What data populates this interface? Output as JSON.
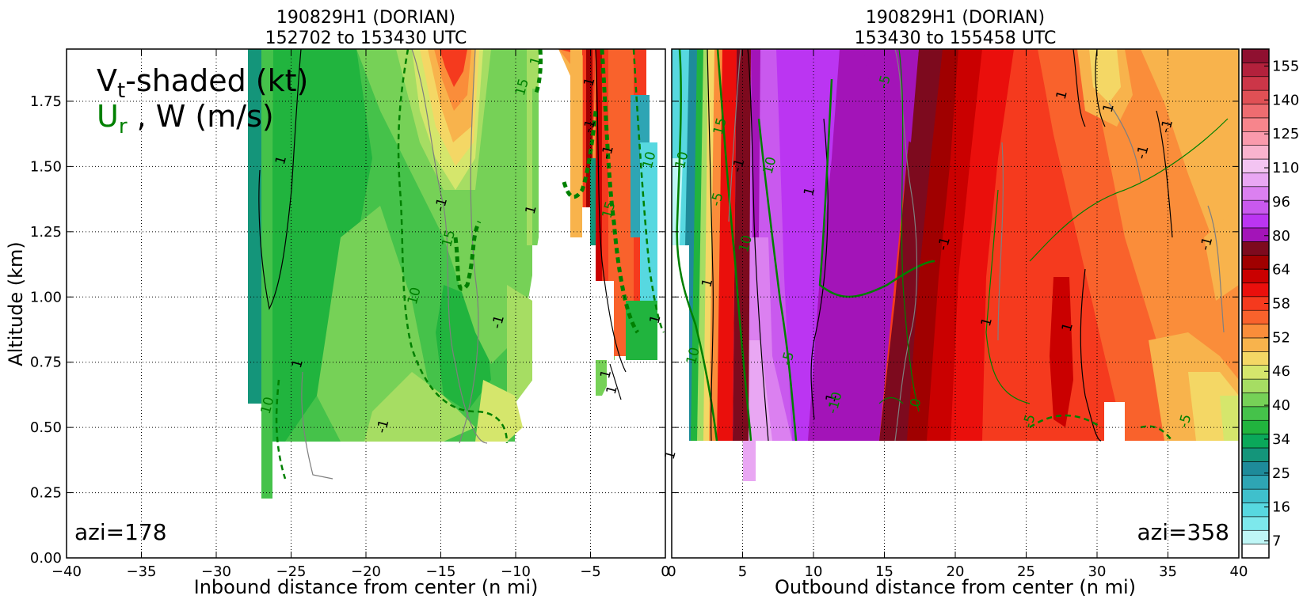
{
  "chart_data": [
    {
      "type": "heatmap",
      "title_line1": "190829H1 (DORIAN)",
      "title_line2": "152702 to 153430 UTC",
      "xlabel": "Inbound distance from center (n mi)",
      "ylabel": "Altitude (km)",
      "xlim": [
        -40,
        0
      ],
      "ylim": [
        0.0,
        1.95
      ],
      "x_ticks": [
        "−40",
        "−35",
        "−30",
        "−25",
        "−20",
        "−15",
        "−10",
        "−5",
        "0"
      ],
      "y_ticks": [
        "0.00",
        "0.25",
        "0.50",
        "0.75",
        "1.00",
        "1.25",
        "1.50",
        "1.75"
      ],
      "grid": true,
      "annotation_azimuth": "azi=178",
      "legend_line1_main": "V",
      "legend_line1_sub": "t",
      "legend_line1_rest": "-shaded (kt)",
      "legend_line2_main": "U",
      "legend_line2_sub": "r",
      "legend_line2_rest": " , W (m/s)",
      "contour_labels": [
        {
          "text": "1",
          "x": -24.3,
          "y": 0.74,
          "color": "#000000"
        },
        {
          "text": "1",
          "x": -25.4,
          "y": 1.52,
          "color": "#000000"
        },
        {
          "text": "-1",
          "x": -18.6,
          "y": 0.5,
          "color": "#000000"
        },
        {
          "text": "-1",
          "x": -14.7,
          "y": 1.35,
          "color": "#000000"
        },
        {
          "text": "-1",
          "x": -10.9,
          "y": 0.9,
          "color": "#000000"
        },
        {
          "text": "1",
          "x": -8.7,
          "y": 1.33,
          "color": "#000000"
        },
        {
          "text": "1",
          "x": -4.8,
          "y": 1.82,
          "color": "#000000"
        },
        {
          "text": "-1",
          "x": -4.8,
          "y": 1.65,
          "color": "#000000"
        },
        {
          "text": "-1",
          "x": -3.6,
          "y": 1.55,
          "color": "#000000"
        },
        {
          "text": "1",
          "x": -3.7,
          "y": 0.7,
          "color": "#000000"
        },
        {
          "text": "1",
          "x": -3.3,
          "y": 0.64,
          "color": "#000000"
        },
        {
          "text": "1",
          "x": -0.4,
          "y": 0.91,
          "color": "#000000"
        },
        {
          "text": "10",
          "x": -26.3,
          "y": 0.58,
          "color": "#008000"
        },
        {
          "text": "10",
          "x": -16.5,
          "y": 1.0,
          "color": "#008000"
        },
        {
          "text": "15",
          "x": -14.2,
          "y": 1.22,
          "color": "#008000"
        },
        {
          "text": "15",
          "x": -9.3,
          "y": 1.8,
          "color": "#008000"
        },
        {
          "text": "15",
          "x": -3.5,
          "y": 1.33,
          "color": "#008000"
        },
        {
          "text": "10",
          "x": -0.8,
          "y": 1.52,
          "color": "#008000"
        },
        {
          "text": "1",
          "x": -8.4,
          "y": 1.9,
          "color": "#008000"
        }
      ]
    },
    {
      "type": "heatmap",
      "title_line1": "190829H1 (DORIAN)",
      "title_line2": "153430 to 155458 UTC",
      "xlabel": "Outbound distance from center (n mi)",
      "xlim": [
        0,
        40
      ],
      "ylim": [
        0.0,
        1.95
      ],
      "x_ticks": [
        "0",
        "5",
        "10",
        "15",
        "20",
        "25",
        "30",
        "35",
        "40"
      ],
      "grid": true,
      "annotation_azimuth": "azi=358",
      "contour_labels": [
        {
          "text": "1",
          "x": 2.8,
          "y": 1.05,
          "color": "#000000"
        },
        {
          "text": "-1",
          "x": 5.0,
          "y": 1.5,
          "color": "#000000"
        },
        {
          "text": "1",
          "x": 10.0,
          "y": 1.4,
          "color": "#000000"
        },
        {
          "text": "-1",
          "x": 11.5,
          "y": 0.6,
          "color": "#000000"
        },
        {
          "text": "-1",
          "x": 19.5,
          "y": 1.2,
          "color": "#000000"
        },
        {
          "text": "1",
          "x": 22.5,
          "y": 0.9,
          "color": "#000000"
        },
        {
          "text": "1",
          "x": 28.2,
          "y": 0.88,
          "color": "#000000"
        },
        {
          "text": "1",
          "x": 27.8,
          "y": 1.77,
          "color": "#000000"
        },
        {
          "text": "1",
          "x": 31.1,
          "y": 1.72,
          "color": "#000000"
        },
        {
          "text": "-1",
          "x": 35.2,
          "y": 1.65,
          "color": "#000000"
        },
        {
          "text": "-1",
          "x": 33.5,
          "y": 1.55,
          "color": "#000000"
        },
        {
          "text": "-1",
          "x": 38.0,
          "y": 1.2,
          "color": "#000000"
        },
        {
          "text": "1",
          "x": 0.2,
          "y": 0.39,
          "color": "#000000"
        },
        {
          "text": "10",
          "x": 1.0,
          "y": 1.52,
          "color": "#008000"
        },
        {
          "text": "10",
          "x": 1.8,
          "y": 0.77,
          "color": "#008000"
        },
        {
          "text": "15",
          "x": 3.7,
          "y": 1.65,
          "color": "#008000"
        },
        {
          "text": "-5",
          "x": 3.5,
          "y": 1.37,
          "color": "#008000"
        },
        {
          "text": "10",
          "x": 5.5,
          "y": 1.2,
          "color": "#008000"
        },
        {
          "text": "10",
          "x": 7.2,
          "y": 1.5,
          "color": "#008000"
        },
        {
          "text": "-5",
          "x": 8.5,
          "y": 0.76,
          "color": "#008000"
        },
        {
          "text": "-10",
          "x": 11.8,
          "y": 0.59,
          "color": "#008000"
        },
        {
          "text": "0",
          "x": 17.5,
          "y": 0.59,
          "color": "#008000"
        },
        {
          "text": "-5",
          "x": 15.3,
          "y": 1.82,
          "color": "#008000"
        },
        {
          "text": "-5",
          "x": 25.5,
          "y": 0.52,
          "color": "#008000"
        },
        {
          "text": "-5",
          "x": 36.5,
          "y": 0.52,
          "color": "#008000"
        }
      ]
    }
  ],
  "colorbar": {
    "tick_labels": [
      "155",
      "140",
      "125",
      "110",
      "96",
      "80",
      "64",
      "58",
      "52",
      "46",
      "40",
      "34",
      "25",
      "16",
      "7"
    ],
    "colors": [
      "#ffffff",
      "#bff6f6",
      "#7de8ec",
      "#57d8e0",
      "#3fc0cc",
      "#2ea5b4",
      "#1e8b9a",
      "#14957a",
      "#0aa85a",
      "#21b43e",
      "#45c24a",
      "#76d157",
      "#a6dd63",
      "#d5e66c",
      "#f4d765",
      "#f8b34c",
      "#fa8d3a",
      "#f9622c",
      "#f53a1e",
      "#ea0f0c",
      "#ca0000",
      "#a00000",
      "#7d0a1e",
      "#a314b8",
      "#bb35f2",
      "#c959ee",
      "#db80f0",
      "#e9a7f3",
      "#f3c4f2",
      "#f9b3ce",
      "#fa9aac",
      "#f7858c",
      "#ee6c70",
      "#e05055",
      "#cc3648",
      "#b3213c",
      "#8f1030"
    ]
  }
}
